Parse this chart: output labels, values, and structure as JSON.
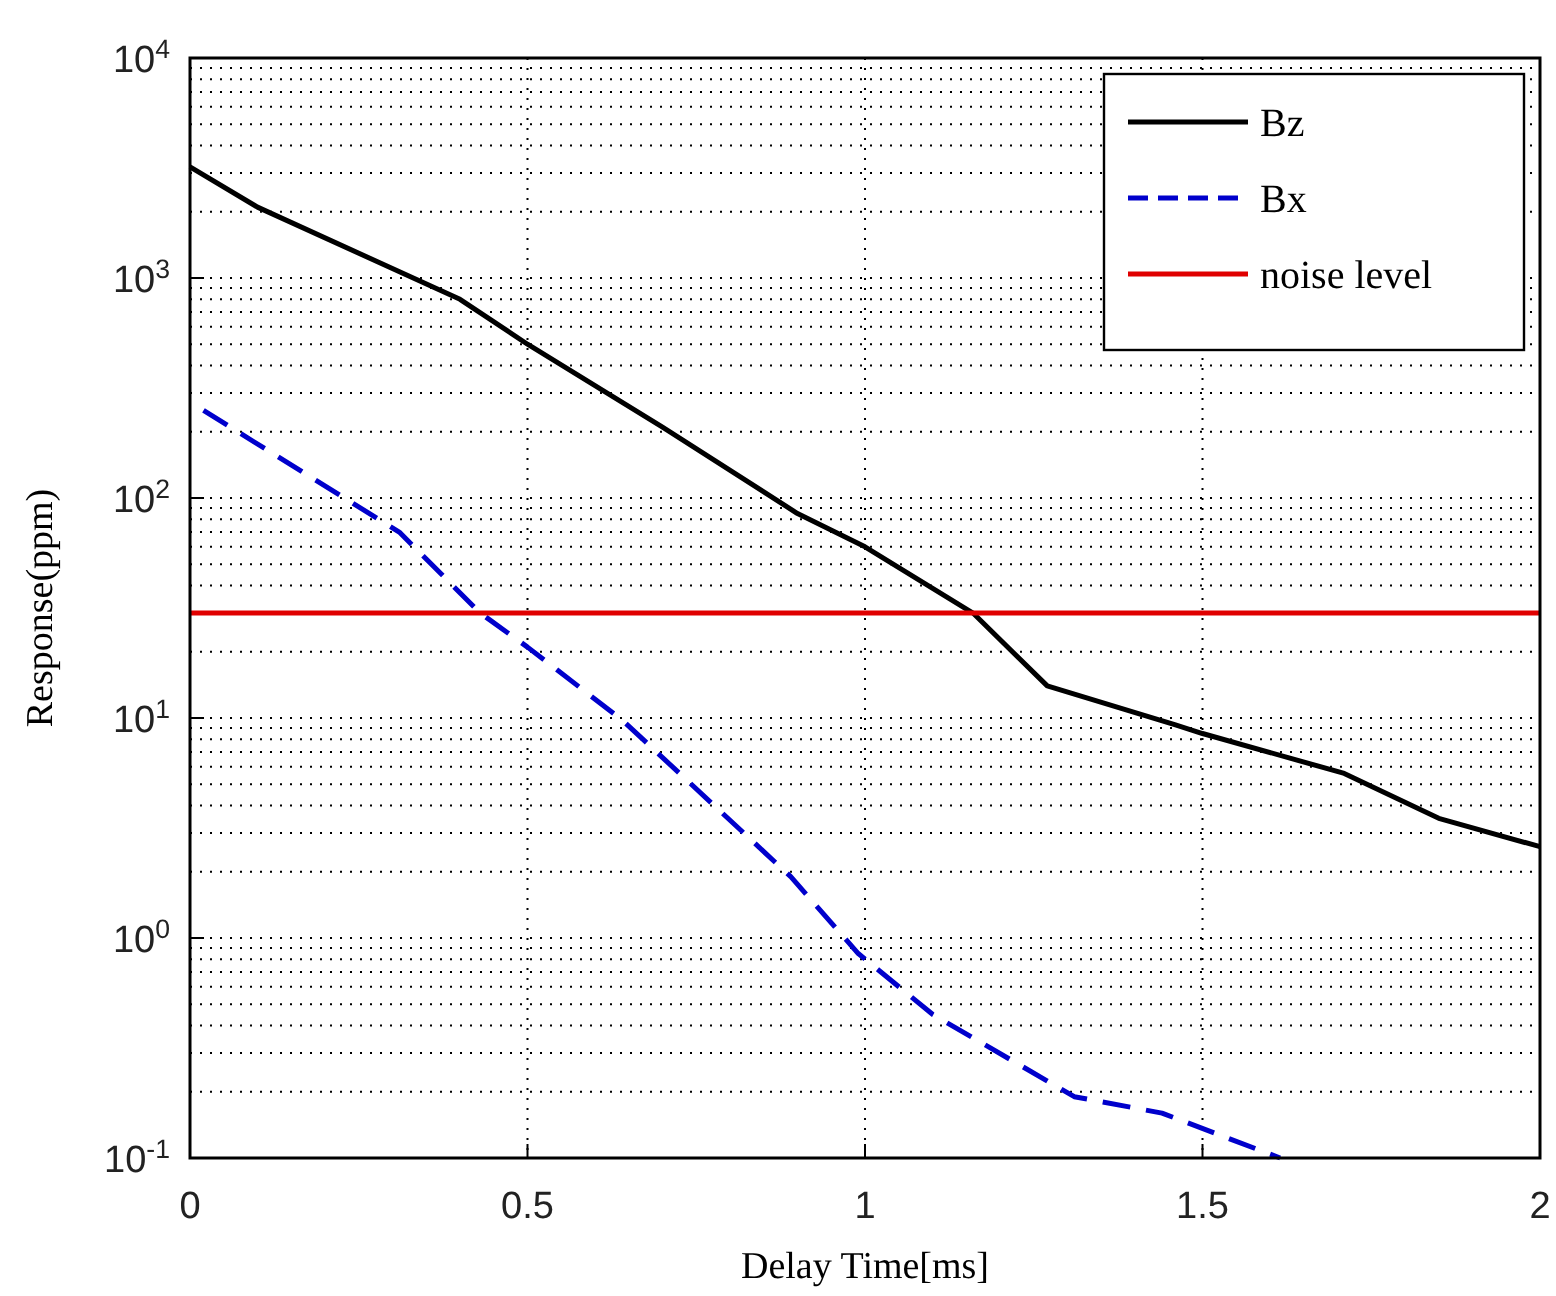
{
  "chart_data": {
    "type": "line",
    "xlabel": "Delay Time[ms]",
    "ylabel": "Response(ppm)",
    "xlim": [
      0,
      2
    ],
    "xticks": [
      0,
      0.5,
      1,
      1.5,
      2
    ],
    "ylim": [
      0.1,
      10000
    ],
    "log": "y",
    "yticks": [
      {
        "value": 0.1,
        "label": "10$^{-1}$"
      },
      {
        "value": 1,
        "label": "10$^{0}$"
      },
      {
        "value": 10,
        "label": "10$^{1}$"
      },
      {
        "value": 100,
        "label": "10$^{2}$"
      },
      {
        "value": 1000,
        "label": "10$^{3}$"
      },
      {
        "value": 10000,
        "label": "10$^{4}$"
      }
    ],
    "grid": true,
    "legend": "top right",
    "marker": "none",
    "series": [
      {
        "name": "Bz",
        "color": "#000000",
        "line_style": "solid",
        "x": [
          0,
          0.1,
          0.4,
          0.5,
          0.7,
          0.9,
          1.0,
          1.16,
          1.27,
          1.46,
          1.5,
          1.71,
          1.85,
          2.0
        ],
        "values": [
          3200,
          2100,
          800,
          500,
          210,
          85,
          60,
          30,
          14,
          9.3,
          8.5,
          5.6,
          3.5,
          2.6
        ]
      },
      {
        "name": "Bx",
        "color": "#0000cc",
        "line_style": "dashed",
        "x": [
          0.02,
          0.31,
          0.43,
          0.5,
          0.64,
          0.89,
          0.99,
          1.1,
          1.31,
          1.44,
          1.615
        ],
        "values": [
          250,
          70,
          30,
          21,
          9.8,
          1.9,
          0.85,
          0.45,
          0.19,
          0.16,
          0.1
        ]
      },
      {
        "name": "noise level",
        "color": "#e00000",
        "line_style": "solid",
        "x": [
          0,
          2
        ],
        "values": [
          30,
          30
        ]
      }
    ]
  }
}
